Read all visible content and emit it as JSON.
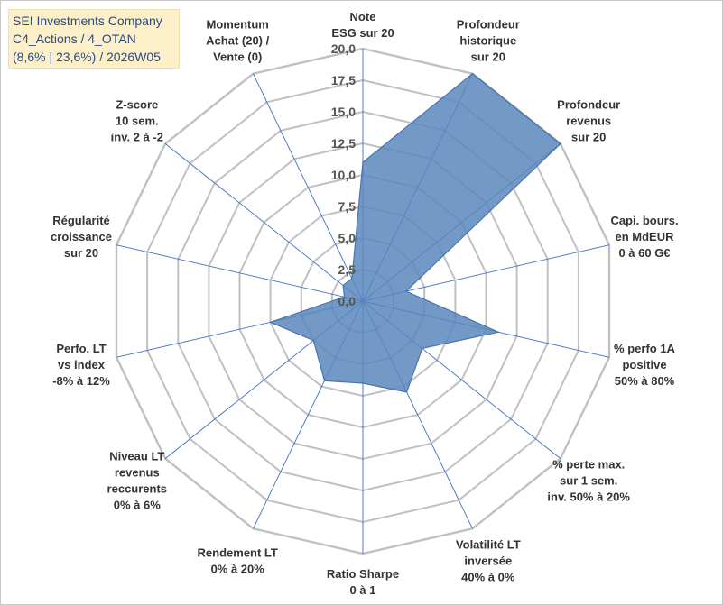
{
  "title_box": {
    "line1": "SEI Investments Company",
    "line2": "C4_Actions / 4_OTAN",
    "line3": "(8,6% | 23,6%) / 2026W05"
  },
  "chart_data": {
    "type": "radar",
    "title": "SEI Investments Company C4_Actions / 4_OTAN (8,6% | 23,6%) / 2026W05",
    "rmin": 0,
    "rmax": 20,
    "tick_values": [
      0,
      2.5,
      5,
      7.5,
      10,
      12.5,
      15,
      17.5,
      20
    ],
    "tick_labels": [
      "0,0",
      "2,5",
      "5,0",
      "7,5",
      "10,0",
      "12,5",
      "15,0",
      "17,5",
      "20,0"
    ],
    "grid": true,
    "fill_color": "#5b87bc",
    "line_color": "#4a74ad",
    "grid_color": "#c0c0c0",
    "spoke_color": "#3f6fc2",
    "categories": [
      [
        "Note",
        "ESG sur 20"
      ],
      [
        "Profondeur",
        "historique",
        "sur 20"
      ],
      [
        "Profondeur",
        "revenus",
        "sur 20"
      ],
      [
        "Capi. bours.",
        "en MdEUR",
        "0 à 60 G€"
      ],
      [
        "% perfo 1A",
        "positive",
        "50% à 80%"
      ],
      [
        "% perte max.",
        "sur 1 sem.",
        "inv. 50% à 20%"
      ],
      [
        "Volatilité LT",
        "inversée",
        "40% à 0%"
      ],
      [
        "Ratio Sharpe",
        "0 à 1"
      ],
      [
        "Rendement LT",
        "0% à 20%"
      ],
      [
        "Niveau LT",
        "revenus",
        "reccurents",
        "0% à 6%"
      ],
      [
        "Perfo. LT",
        "vs index",
        "-8% à 12%"
      ],
      [
        "Régularité",
        "croissance",
        "sur 20"
      ],
      [
        "Z-score",
        "10 sem.",
        "inv. 2 à -2"
      ],
      [
        "Momentum",
        "Achat (20) /",
        "Vente (0)"
      ]
    ],
    "series": [
      {
        "values": [
          11,
          20,
          20,
          3.5,
          11,
          6,
          8,
          6.5,
          7,
          5,
          7.5,
          1.5,
          2,
          2
        ]
      }
    ]
  }
}
